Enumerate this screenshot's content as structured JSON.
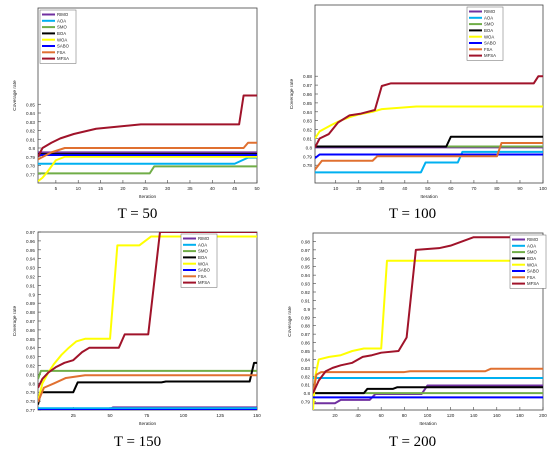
{
  "chart_data": [
    {
      "type": "line",
      "caption": "T = 50",
      "xlabel": "Iteration",
      "ylabel": "Coverage rate",
      "xlim": [
        1,
        50
      ],
      "ylim": [
        0.76,
        0.96
      ],
      "xticks": [
        5,
        10,
        15,
        20,
        25,
        30,
        35,
        40,
        45,
        50
      ],
      "yticks": [
        0.77,
        0.78,
        0.79,
        0.8,
        0.81,
        0.82,
        0.83,
        0.84,
        0.85
      ],
      "ytick_labels": [
        "0.77",
        "0.78",
        "0.79",
        "0.8",
        "0.81",
        "0.82",
        "0.83",
        "0.84",
        "0.85"
      ],
      "legend_position": "top-left",
      "series": [
        {
          "name": "RIMO",
          "color": "#7030a0",
          "points": [
            [
              1,
              0.795
            ],
            [
              50,
              0.795
            ]
          ]
        },
        {
          "name": "AOA",
          "color": "#00b0f0",
          "points": [
            [
              1,
              0.782
            ],
            [
              45,
              0.782
            ],
            [
              48,
              0.789
            ],
            [
              50,
              0.789
            ]
          ]
        },
        {
          "name": "SMO",
          "color": "#70ad47",
          "points": [
            [
              1,
              0.771
            ],
            [
              26,
              0.771
            ],
            [
              27,
              0.779
            ],
            [
              50,
              0.779
            ]
          ]
        },
        {
          "name": "BOA",
          "color": "#000000",
          "points": [
            [
              1,
              0.793
            ],
            [
              50,
              0.793
            ]
          ]
        },
        {
          "name": "WOA",
          "color": "#ffff00",
          "points": [
            [
              1,
              0.762
            ],
            [
              2,
              0.766
            ],
            [
              3,
              0.772
            ],
            [
              4,
              0.779
            ],
            [
              5,
              0.786
            ],
            [
              7,
              0.79
            ],
            [
              50,
              0.79
            ]
          ]
        },
        {
          "name": "SABO",
          "color": "#0000ff",
          "points": [
            [
              1,
              0.792
            ],
            [
              50,
              0.792
            ]
          ]
        },
        {
          "name": "FSA",
          "color": "#e07030",
          "points": [
            [
              1,
              0.787
            ],
            [
              4,
              0.795
            ],
            [
              7,
              0.8
            ],
            [
              47,
              0.8
            ],
            [
              48,
              0.806
            ],
            [
              50,
              0.806
            ]
          ]
        },
        {
          "name": "MFSA",
          "color": "#a0132a",
          "points": [
            [
              1,
              0.79
            ],
            [
              2,
              0.8
            ],
            [
              4,
              0.806
            ],
            [
              6,
              0.811
            ],
            [
              9,
              0.816
            ],
            [
              14,
              0.822
            ],
            [
              24,
              0.827
            ],
            [
              46,
              0.827
            ],
            [
              47,
              0.86
            ],
            [
              50,
              0.86
            ]
          ]
        }
      ]
    },
    {
      "type": "line",
      "caption": "T = 100",
      "xlabel": "Iteration",
      "ylabel": "Coverage rate",
      "xlim": [
        1,
        100
      ],
      "ylim": [
        0.76,
        0.96
      ],
      "xticks": [
        10,
        20,
        30,
        40,
        50,
        60,
        70,
        80,
        90,
        100
      ],
      "yticks": [
        0.78,
        0.79,
        0.8,
        0.81,
        0.82,
        0.83,
        0.84,
        0.85,
        0.86,
        0.87,
        0.88
      ],
      "ytick_labels": [
        "0.78",
        "0.79",
        "0.8",
        "0.81",
        "0.82",
        "0.83",
        "0.84",
        "0.85",
        "0.86",
        "0.87",
        "0.88"
      ],
      "legend_position": "top-right",
      "series": [
        {
          "name": "RIMO",
          "color": "#7030a0",
          "points": [
            [
              1,
              0.8
            ],
            [
              100,
              0.8
            ]
          ]
        },
        {
          "name": "AOA",
          "color": "#00b0f0",
          "points": [
            [
              1,
              0.772
            ],
            [
              47,
              0.772
            ],
            [
              49,
              0.783
            ],
            [
              63,
              0.783
            ],
            [
              65,
              0.795
            ],
            [
              100,
              0.795
            ]
          ]
        },
        {
          "name": "SMO",
          "color": "#70ad47",
          "points": [
            [
              1,
              0.801
            ],
            [
              100,
              0.801
            ]
          ]
        },
        {
          "name": "BOA",
          "color": "#000000",
          "points": [
            [
              1,
              0.801
            ],
            [
              58,
              0.801
            ],
            [
              60,
              0.812
            ],
            [
              100,
              0.812
            ]
          ]
        },
        {
          "name": "WOA",
          "color": "#ffff00",
          "points": [
            [
              1,
              0.81
            ],
            [
              3,
              0.818
            ],
            [
              8,
              0.825
            ],
            [
              12,
              0.83
            ],
            [
              16,
              0.834
            ],
            [
              20,
              0.837
            ],
            [
              26,
              0.84
            ],
            [
              30,
              0.843
            ],
            [
              45,
              0.846
            ],
            [
              100,
              0.846
            ]
          ]
        },
        {
          "name": "SABO",
          "color": "#0000ff",
          "points": [
            [
              1,
              0.788
            ],
            [
              3,
              0.792
            ],
            [
              100,
              0.792
            ]
          ]
        },
        {
          "name": "FSA",
          "color": "#e07030",
          "points": [
            [
              1,
              0.775
            ],
            [
              4,
              0.785
            ],
            [
              26,
              0.785
            ],
            [
              28,
              0.79
            ],
            [
              80,
              0.79
            ],
            [
              82,
              0.805
            ],
            [
              100,
              0.805
            ]
          ]
        },
        {
          "name": "MFSA",
          "color": "#a0132a",
          "points": [
            [
              1,
              0.8
            ],
            [
              3,
              0.81
            ],
            [
              7,
              0.815
            ],
            [
              11,
              0.828
            ],
            [
              16,
              0.836
            ],
            [
              21,
              0.838
            ],
            [
              27,
              0.842
            ],
            [
              30,
              0.869
            ],
            [
              34,
              0.872
            ],
            [
              96,
              0.872
            ],
            [
              98,
              0.88
            ],
            [
              100,
              0.88
            ]
          ]
        }
      ]
    },
    {
      "type": "line",
      "caption": "T = 150",
      "xlabel": "Iteration",
      "ylabel": "Coverage rate",
      "xlim": [
        1,
        150
      ],
      "ylim": [
        0.77,
        0.97
      ],
      "xticks": [
        25,
        50,
        75,
        100,
        125,
        150
      ],
      "yticks": [
        0.77,
        0.78,
        0.79,
        0.8,
        0.81,
        0.82,
        0.83,
        0.84,
        0.85,
        0.86,
        0.87,
        0.88,
        0.89,
        0.9,
        0.91,
        0.92,
        0.93,
        0.94,
        0.95,
        0.96,
        0.97
      ],
      "ytick_labels": [
        "0.77",
        "0.78",
        "0.79",
        "0.8",
        "0.81",
        "0.82",
        "0.83",
        "0.84",
        "0.85",
        "0.86",
        "0.87",
        "0.88",
        "0.89",
        "0.9",
        "0.91",
        "0.92",
        "0.93",
        "0.94",
        "0.95",
        "0.96",
        "0.97"
      ],
      "legend_position": "top-right",
      "series": [
        {
          "name": "RIMO",
          "color": "#7030a0",
          "points": [
            [
              1,
              0.771
            ],
            [
              50,
              0.771
            ],
            [
              52,
              0.773
            ],
            [
              150,
              0.773
            ]
          ]
        },
        {
          "name": "AOA",
          "color": "#00b0f0",
          "points": [
            [
              1,
              0.772
            ],
            [
              150,
              0.772
            ]
          ]
        },
        {
          "name": "SMO",
          "color": "#70ad47",
          "points": [
            [
              1,
              0.805
            ],
            [
              3,
              0.814
            ],
            [
              150,
              0.814
            ]
          ]
        },
        {
          "name": "BOA",
          "color": "#000000",
          "points": [
            [
              1,
              0.776
            ],
            [
              3,
              0.79
            ],
            [
              25,
              0.79
            ],
            [
              28,
              0.801
            ],
            [
              85,
              0.801
            ],
            [
              88,
              0.802
            ],
            [
              145,
              0.802
            ],
            [
              148,
              0.823
            ],
            [
              150,
              0.823
            ]
          ]
        },
        {
          "name": "WOA",
          "color": "#ffff00",
          "points": [
            [
              1,
              0.78
            ],
            [
              4,
              0.8
            ],
            [
              8,
              0.812
            ],
            [
              12,
              0.822
            ],
            [
              17,
              0.832
            ],
            [
              22,
              0.84
            ],
            [
              27,
              0.847
            ],
            [
              33,
              0.85
            ],
            [
              50,
              0.85
            ],
            [
              55,
              0.955
            ],
            [
              70,
              0.955
            ],
            [
              78,
              0.965
            ],
            [
              150,
              0.965
            ]
          ]
        },
        {
          "name": "SABO",
          "color": "#0000ff",
          "points": [
            [
              1,
              0.77
            ],
            [
              150,
              0.77
            ]
          ]
        },
        {
          "name": "FSA",
          "color": "#e07030",
          "points": [
            [
              1,
              0.779
            ],
            [
              5,
              0.795
            ],
            [
              12,
              0.8
            ],
            [
              20,
              0.806
            ],
            [
              33,
              0.809
            ],
            [
              150,
              0.809
            ]
          ]
        },
        {
          "name": "MFSA",
          "color": "#a0132a",
          "points": [
            [
              1,
              0.795
            ],
            [
              4,
              0.805
            ],
            [
              8,
              0.812
            ],
            [
              13,
              0.818
            ],
            [
              19,
              0.823
            ],
            [
              25,
              0.826
            ],
            [
              31,
              0.835
            ],
            [
              36,
              0.84
            ],
            [
              56,
              0.84
            ],
            [
              60,
              0.855
            ],
            [
              76,
              0.855
            ],
            [
              84,
              0.97
            ],
            [
              150,
              0.97
            ]
          ]
        }
      ]
    },
    {
      "type": "line",
      "caption": "T = 200",
      "xlabel": "Iteration",
      "ylabel": "Coverage rate",
      "xlim": [
        1,
        200
      ],
      "ylim": [
        0.78,
        0.99
      ],
      "xticks": [
        20,
        40,
        60,
        80,
        100,
        120,
        140,
        160,
        180,
        200
      ],
      "yticks": [
        0.79,
        0.8,
        0.81,
        0.82,
        0.83,
        0.84,
        0.85,
        0.86,
        0.87,
        0.88,
        0.89,
        0.9,
        0.91,
        0.92,
        0.93,
        0.94,
        0.95,
        0.96,
        0.97,
        0.98
      ],
      "ytick_labels": [
        "0.79",
        "0.8",
        "0.81",
        "0.82",
        "0.83",
        "0.84",
        "0.85",
        "0.86",
        "0.87",
        "0.88",
        "0.89",
        "0.9",
        "0.91",
        "0.92",
        "0.93",
        "0.94",
        "0.95",
        "0.96",
        "0.97",
        "0.98"
      ],
      "legend_position": "top-right",
      "series": [
        {
          "name": "RIMO",
          "color": "#7030a0",
          "points": [
            [
              1,
              0.788
            ],
            [
              20,
              0.788
            ],
            [
              25,
              0.792
            ],
            [
              50,
              0.792
            ],
            [
              55,
              0.799
            ],
            [
              95,
              0.799
            ],
            [
              100,
              0.809
            ],
            [
              200,
              0.809
            ]
          ]
        },
        {
          "name": "AOA",
          "color": "#00b0f0",
          "points": [
            [
              1,
              0.818
            ],
            [
              200,
              0.818
            ]
          ]
        },
        {
          "name": "SMO",
          "color": "#70ad47",
          "points": [
            [
              1,
              0.8
            ],
            [
              200,
              0.8
            ]
          ]
        },
        {
          "name": "BOA",
          "color": "#000000",
          "points": [
            [
              1,
              0.8
            ],
            [
              45,
              0.8
            ],
            [
              48,
              0.805
            ],
            [
              70,
              0.805
            ],
            [
              74,
              0.807
            ],
            [
              200,
              0.807
            ]
          ]
        },
        {
          "name": "WOA",
          "color": "#ffff00",
          "points": [
            [
              1,
              0.78
            ],
            [
              3,
              0.82
            ],
            [
              6,
              0.84
            ],
            [
              15,
              0.843
            ],
            [
              25,
              0.845
            ],
            [
              35,
              0.85
            ],
            [
              45,
              0.853
            ],
            [
              60,
              0.853
            ],
            [
              65,
              0.957
            ],
            [
              200,
              0.957
            ]
          ]
        },
        {
          "name": "SABO",
          "color": "#0000ff",
          "points": [
            [
              1,
              0.795
            ],
            [
              200,
              0.795
            ]
          ]
        },
        {
          "name": "FSA",
          "color": "#e07030",
          "points": [
            [
              1,
              0.8
            ],
            [
              4,
              0.822
            ],
            [
              8,
              0.825
            ],
            [
              80,
              0.825
            ],
            [
              85,
              0.826
            ],
            [
              150,
              0.826
            ],
            [
              155,
              0.829
            ],
            [
              200,
              0.829
            ]
          ]
        },
        {
          "name": "MFSA",
          "color": "#a0132a",
          "points": [
            [
              1,
              0.8
            ],
            [
              6,
              0.815
            ],
            [
              12,
              0.826
            ],
            [
              18,
              0.83
            ],
            [
              25,
              0.833
            ],
            [
              35,
              0.836
            ],
            [
              44,
              0.843
            ],
            [
              52,
              0.845
            ],
            [
              60,
              0.848
            ],
            [
              75,
              0.85
            ],
            [
              82,
              0.866
            ],
            [
              90,
              0.97
            ],
            [
              110,
              0.972
            ],
            [
              120,
              0.975
            ],
            [
              140,
              0.985
            ],
            [
              200,
              0.985
            ]
          ]
        }
      ]
    }
  ]
}
